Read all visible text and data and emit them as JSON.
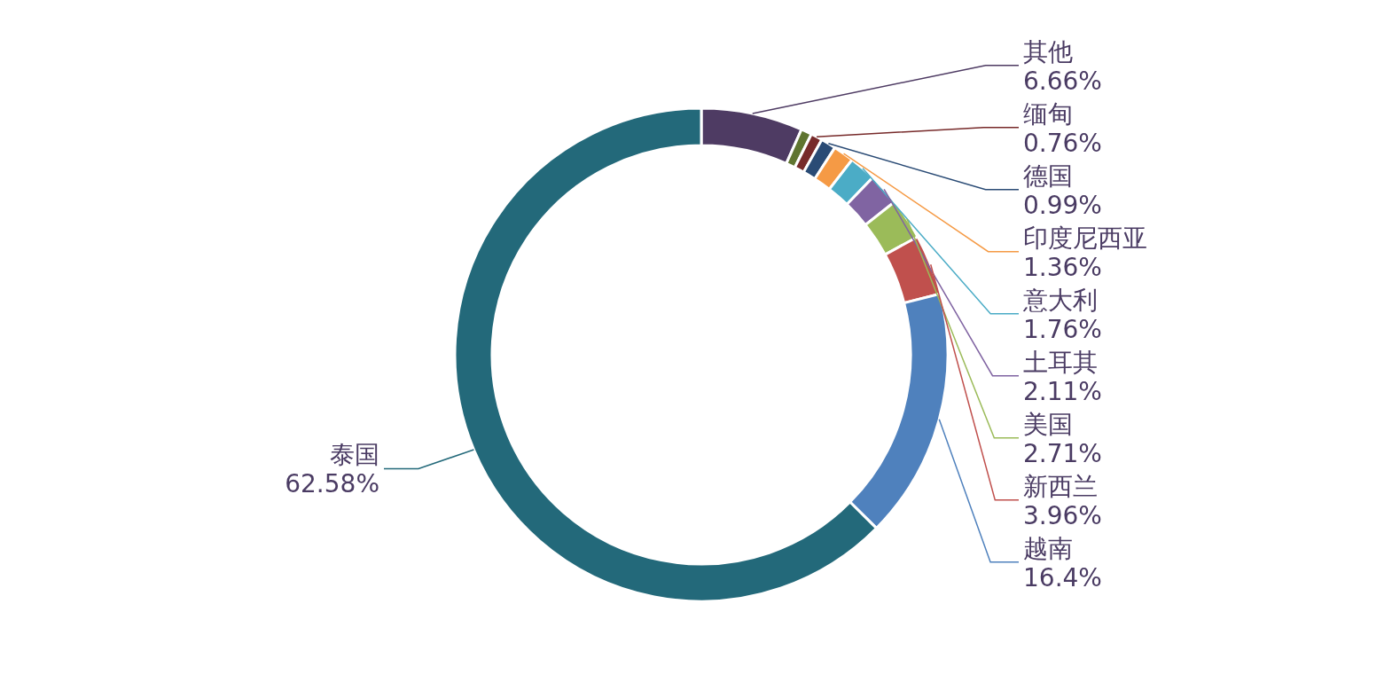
{
  "chart_data": {
    "type": "donut",
    "categories": [
      "其他",
      null,
      "缅甸",
      "德国",
      "印度尼西亚",
      "意大利",
      "土耳其",
      "美国",
      "新西兰",
      "越南",
      "泰国"
    ],
    "values": [
      6.66,
      0.71,
      0.76,
      0.99,
      1.36,
      1.76,
      2.11,
      2.71,
      3.96,
      16.4,
      62.58
    ],
    "value_labels": [
      "6.66%",
      null,
      "0.76%",
      "0.99%",
      "1.36%",
      "1.76%",
      "2.11%",
      "2.71%",
      "3.96%",
      "16.4%",
      "62.58%"
    ],
    "colors": [
      "#4e3b63",
      "#5f7530",
      "#772a2a",
      "#2a4b75",
      "#f59a45",
      "#4bacc6",
      "#8064a2",
      "#9bbb59",
      "#c0504d",
      "#4f81bd",
      "#23697a"
    ]
  }
}
